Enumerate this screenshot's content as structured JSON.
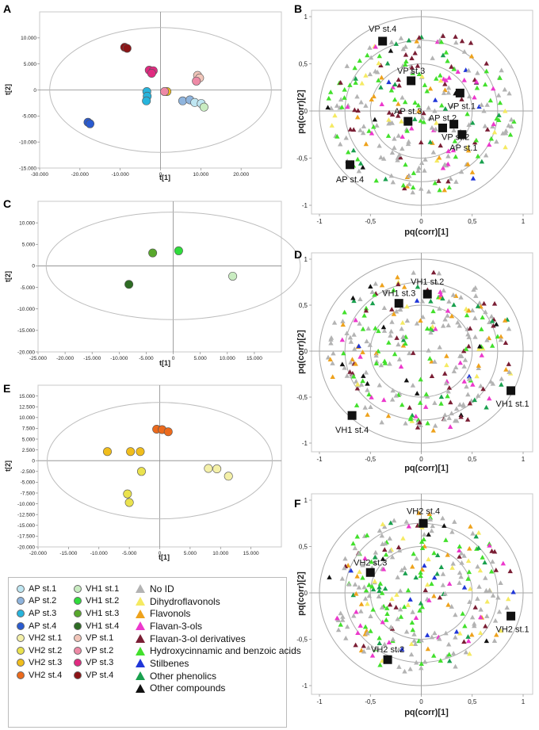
{
  "chart_data": [
    {
      "id": "A",
      "type": "scatter",
      "panel_label": "A",
      "xlabel": "t[1]",
      "ylabel": "t[2]",
      "xlim": [
        -30000,
        30000
      ],
      "ylim": [
        -15000,
        15000
      ],
      "xticks": [
        -30000,
        -20000,
        -10000,
        0,
        10000,
        20000
      ],
      "yticks": [
        -15000,
        -10000,
        -5000,
        0,
        5000,
        10000
      ],
      "xticklabels": [
        "-30.000",
        "-20.000",
        "-10.000",
        "0",
        "10.000",
        "20.000"
      ],
      "yticklabels": [
        "-15.000",
        "-10.000",
        "-5.000",
        "0",
        "5.000",
        "10.000"
      ],
      "ellipse": {
        "rx": 27500,
        "ry": 12000
      },
      "points": [
        {
          "x": -8900,
          "y": 8200,
          "group": "VP st.4"
        },
        {
          "x": -8300,
          "y": 8000,
          "group": "VP st.4"
        },
        {
          "x": -2800,
          "y": 3800,
          "group": "VP st.3"
        },
        {
          "x": -1800,
          "y": 3700,
          "group": "VP st.3"
        },
        {
          "x": -2200,
          "y": 3200,
          "group": "VP st.3"
        },
        {
          "x": 9200,
          "y": 2800,
          "group": "VP st.1"
        },
        {
          "x": 9700,
          "y": 2300,
          "group": "VP st.1"
        },
        {
          "x": 8900,
          "y": 1700,
          "group": "VP st.2"
        },
        {
          "x": -3400,
          "y": -300,
          "group": "AP st.3"
        },
        {
          "x": -3300,
          "y": -1200,
          "group": "AP st.3"
        },
        {
          "x": -3500,
          "y": -2100,
          "group": "AP st.3"
        },
        {
          "x": 1600,
          "y": -300,
          "group": "VH2 st.3"
        },
        {
          "x": 1000,
          "y": -300,
          "group": "VP st.2"
        },
        {
          "x": 5500,
          "y": -2100,
          "group": "AP st.2"
        },
        {
          "x": 7300,
          "y": -1900,
          "group": "AP st.2"
        },
        {
          "x": 8500,
          "y": -2400,
          "group": "AP st.1"
        },
        {
          "x": 10100,
          "y": -2600,
          "group": "AP st.1"
        },
        {
          "x": 10800,
          "y": -3300,
          "group": "VH1 st.1"
        },
        {
          "x": -18000,
          "y": -6200,
          "group": "AP st.4"
        },
        {
          "x": -17500,
          "y": -6500,
          "group": "AP st.4"
        }
      ]
    },
    {
      "id": "C",
      "type": "scatter",
      "panel_label": "C",
      "xlabel": "t[1]",
      "ylabel": "t[2]",
      "xlim": [
        -25000,
        20000
      ],
      "ylim": [
        -20000,
        15000
      ],
      "xticks": [
        -25000,
        -20000,
        -15000,
        -10000,
        -5000,
        0,
        5000,
        10000,
        15000
      ],
      "yticks": [
        -20000,
        -15000,
        -10000,
        -5000,
        0,
        5000,
        10000
      ],
      "xticklabels": [
        "-25.000",
        "-20.000",
        "-15.000",
        "-10.000",
        "-5.000",
        "0",
        "5.000",
        "10.000",
        "15.000"
      ],
      "yticklabels": [
        "-20.000",
        "-15.000",
        "-10.000",
        "-5.000",
        "0",
        "5.000",
        "10.000"
      ],
      "ellipse": {
        "rx": 23500,
        "ry": 12500
      },
      "points": [
        {
          "x": 1000,
          "y": 3500,
          "group": "VH1 st.2"
        },
        {
          "x": -3800,
          "y": 3000,
          "group": "VH1 st.3"
        },
        {
          "x": 11000,
          "y": -2400,
          "group": "VH1 st.1"
        },
        {
          "x": -8200,
          "y": -4300,
          "group": "VH1 st.4"
        }
      ]
    },
    {
      "id": "E",
      "type": "scatter",
      "panel_label": "E",
      "xlabel": "t[1]",
      "ylabel": "t[2]",
      "xlim": [
        -20000,
        20000
      ],
      "ylim": [
        -20000,
        17500
      ],
      "xticks": [
        -20000,
        -15000,
        -10000,
        -5000,
        0,
        5000,
        10000,
        15000
      ],
      "yticks": [
        -20000,
        -17500,
        -15000,
        -12500,
        -10000,
        -7500,
        -5000,
        -2500,
        0,
        2500,
        5000,
        7500,
        10000,
        12500,
        15000
      ],
      "xticklabels": [
        "-20.000",
        "-15.000",
        "-10.000",
        "-5.000",
        "0",
        "5.000",
        "10.000",
        "15.000"
      ],
      "yticklabels": [
        "-20.000",
        "-17.500",
        "-15.000",
        "-12.500",
        "-10.000",
        "-7.500",
        "-5.000",
        "-2.500",
        "0",
        "2.500",
        "5.000",
        "7.500",
        "10.000",
        "12.500",
        "15.000"
      ],
      "ellipse": {
        "rx": 18500,
        "ry": 13500
      },
      "points": [
        {
          "x": -500,
          "y": 7300,
          "group": "VH2 st.4"
        },
        {
          "x": 400,
          "y": 7200,
          "group": "VH2 st.4"
        },
        {
          "x": 1400,
          "y": 6700,
          "group": "VH2 st.4"
        },
        {
          "x": -8600,
          "y": 2100,
          "group": "VH2 st.3"
        },
        {
          "x": -4800,
          "y": 2100,
          "group": "VH2 st.3"
        },
        {
          "x": -3200,
          "y": 2100,
          "group": "VH2 st.3"
        },
        {
          "x": -3000,
          "y": -2500,
          "group": "VH2 st.2"
        },
        {
          "x": -5300,
          "y": -7700,
          "group": "VH2 st.2"
        },
        {
          "x": -5000,
          "y": -9700,
          "group": "VH2 st.2"
        },
        {
          "x": 8000,
          "y": -1800,
          "group": "VH2 st.1"
        },
        {
          "x": 9400,
          "y": -1900,
          "group": "VH2 st.1"
        },
        {
          "x": 11300,
          "y": -3600,
          "group": "VH2 st.1"
        }
      ]
    },
    {
      "id": "B",
      "type": "scatter",
      "panel_label": "B",
      "xlabel": "pq(corr)[1]",
      "ylabel": "pq(corr)[2]",
      "xlim": [
        -1,
        1
      ],
      "ylim": [
        -1,
        1
      ],
      "xticks": [
        -1,
        -0.5,
        0,
        0.5,
        1
      ],
      "yticks": [
        -1,
        -0.5,
        0,
        0.5,
        1
      ],
      "xticklabels": [
        "-1",
        "-0,5",
        "0",
        "0,5",
        "1"
      ],
      "yticklabels": [
        "-1",
        "-0,5",
        "0",
        "0,5",
        "1"
      ],
      "circles": [
        1,
        0.75,
        0.5
      ],
      "sample_markers": [
        {
          "x": -0.38,
          "y": 0.74,
          "label": "VP st.4"
        },
        {
          "x": -0.1,
          "y": 0.32,
          "label": "VP st.3"
        },
        {
          "x": 0.38,
          "y": 0.19,
          "label": "VP st.1"
        },
        {
          "x": 0.32,
          "y": -0.14,
          "label": "VP st.2"
        },
        {
          "x": -0.13,
          "y": -0.11,
          "label": "AP st.3"
        },
        {
          "x": 0.21,
          "y": -0.18,
          "label": "AP st.2"
        },
        {
          "x": 0.4,
          "y": -0.25,
          "label": "AP st.1"
        },
        {
          "x": -0.7,
          "y": -0.57,
          "label": "AP st.4"
        }
      ]
    },
    {
      "id": "D",
      "type": "scatter",
      "panel_label": "D",
      "xlabel": "pq(corr)[1]",
      "ylabel": "pq(corr)[2]",
      "xlim": [
        -1,
        1
      ],
      "ylim": [
        -1,
        1
      ],
      "xticks": [
        -1,
        -0.5,
        0,
        0.5,
        1
      ],
      "yticks": [
        -1,
        -0.5,
        0,
        0.5,
        1
      ],
      "xticklabels": [
        "-1",
        "-0,5",
        "0",
        "0,5",
        "1"
      ],
      "yticklabels": [
        "-1",
        "-0,5",
        "0",
        "0,5",
        "1"
      ],
      "circles": [
        1,
        0.75,
        0.5
      ],
      "sample_markers": [
        {
          "x": 0.06,
          "y": 0.62,
          "label": "VH1 st.2"
        },
        {
          "x": -0.22,
          "y": 0.52,
          "label": "VH1 st.3"
        },
        {
          "x": 0.88,
          "y": -0.43,
          "label": "VH1 st.1"
        },
        {
          "x": -0.68,
          "y": -0.7,
          "label": "VH1 st.4"
        }
      ]
    },
    {
      "id": "F",
      "type": "scatter",
      "panel_label": "F",
      "xlabel": "pq(corr)[1]",
      "ylabel": "pq(corr)[2]",
      "xlim": [
        -1,
        1
      ],
      "ylim": [
        -1,
        1
      ],
      "xticks": [
        -1,
        -0.5,
        0,
        0.5,
        1
      ],
      "yticks": [
        -1,
        -0.5,
        0,
        0.5,
        1
      ],
      "xticklabels": [
        "-1",
        "-0,5",
        "0",
        "0,5",
        "1"
      ],
      "yticklabels": [
        "-1",
        "-0,5",
        "0",
        "0,5",
        "1"
      ],
      "circles": [
        1,
        0.75,
        0.5
      ],
      "sample_markers": [
        {
          "x": 0.02,
          "y": 0.75,
          "label": "VH2 st.4"
        },
        {
          "x": -0.5,
          "y": 0.22,
          "label": "VH2 st.3"
        },
        {
          "x": 0.88,
          "y": -0.25,
          "label": "VH2 st.1"
        },
        {
          "x": -0.33,
          "y": -0.72,
          "label": "VH2 st.2"
        }
      ]
    }
  ],
  "legend": {
    "sample_groups": [
      {
        "label": "AP st.1",
        "color": "#bfe6f2"
      },
      {
        "label": "AP st.2",
        "color": "#8fb4dd"
      },
      {
        "label": "AP st.3",
        "color": "#27b4dc"
      },
      {
        "label": "AP st.4",
        "color": "#2a5bd0"
      },
      {
        "label": "VH2 st.1",
        "color": "#f4f0a8"
      },
      {
        "label": "VH2 st.2",
        "color": "#eae24e"
      },
      {
        "label": "VH2 st.3",
        "color": "#f0bd1c"
      },
      {
        "label": "VH2 st.4",
        "color": "#ec6a1c"
      },
      {
        "label": "VH1 st.1",
        "color": "#c9ecc1"
      },
      {
        "label": "VH1 st.2",
        "color": "#2fdc3c"
      },
      {
        "label": "VH1 st.3",
        "color": "#58a82c"
      },
      {
        "label": "VH1 st.4",
        "color": "#2e6c24"
      },
      {
        "label": "VP st.1",
        "color": "#f2c6ba"
      },
      {
        "label": "VP st.2",
        "color": "#ee8aa6"
      },
      {
        "label": "VP st.3",
        "color": "#e02a80"
      },
      {
        "label": "VP st.4",
        "color": "#8c1416"
      }
    ],
    "compound_classes": [
      {
        "label": "No ID",
        "color": "#b3b3b3"
      },
      {
        "label": "Dihydroflavonols",
        "color": "#f5ea62"
      },
      {
        "label": "Flavonols",
        "color": "#eea21c"
      },
      {
        "label": "Flavan-3-ols",
        "color": "#ec38cc"
      },
      {
        "label": "Flavan-3-ol derivatives",
        "color": "#7a1e34"
      },
      {
        "label": "Hydroxycinnamic and benzoic acids",
        "color": "#42e02c"
      },
      {
        "label": "Stilbenes",
        "color": "#2036d8"
      },
      {
        "label": "Other phenolics",
        "color": "#19a04e"
      },
      {
        "label": "Other compounds",
        "color": "#111111"
      }
    ]
  }
}
